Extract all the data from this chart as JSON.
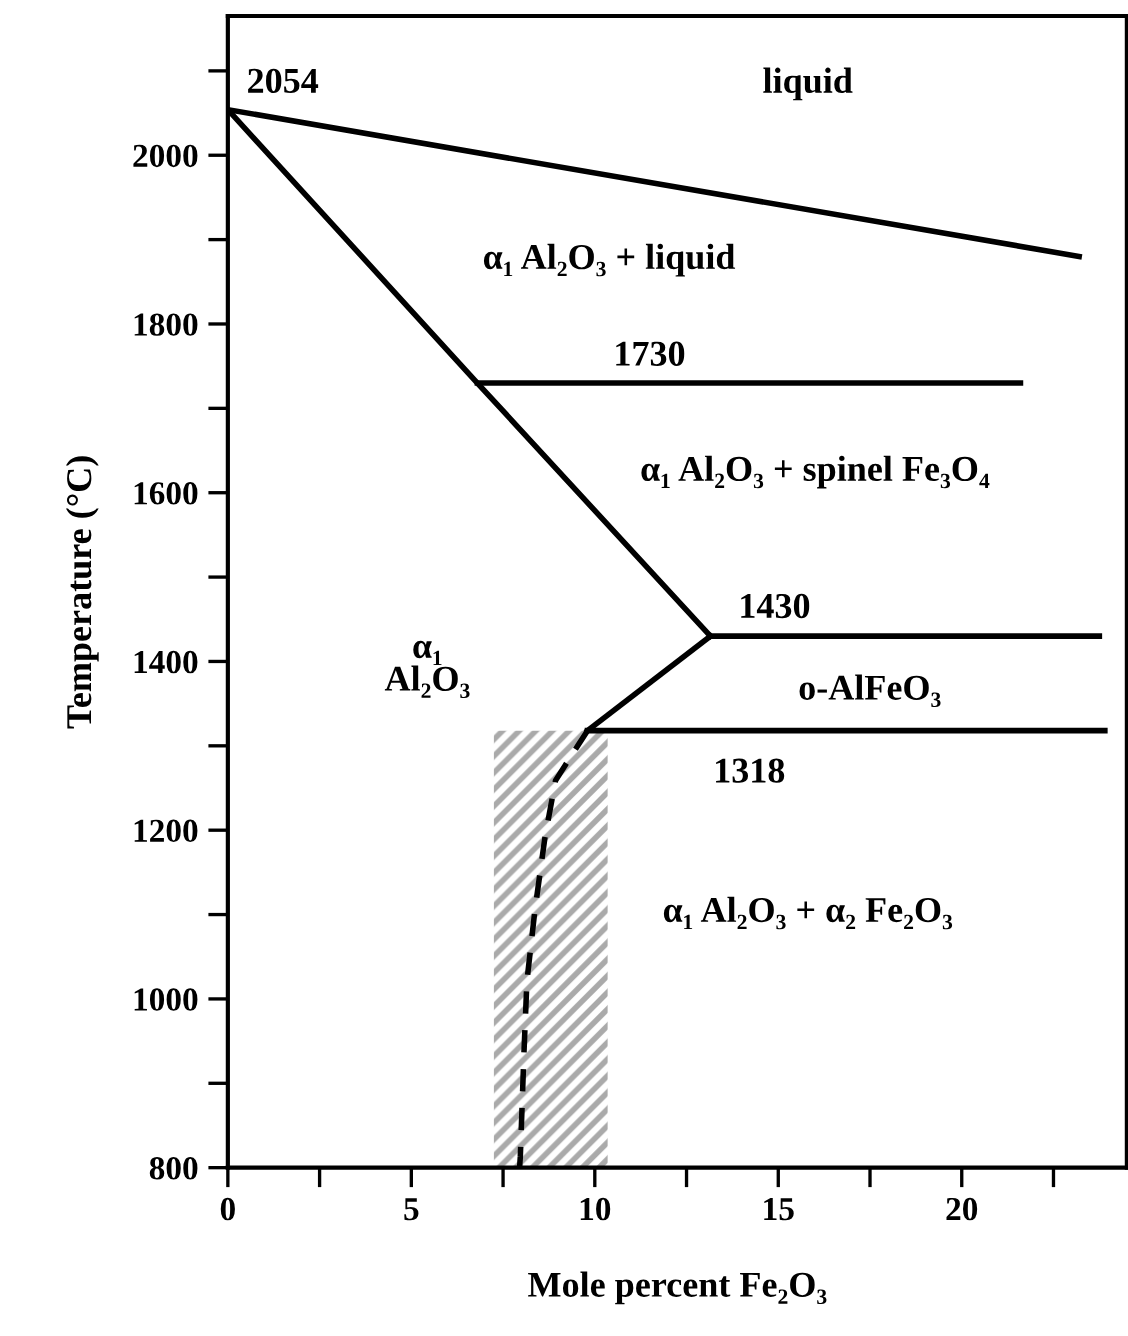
{
  "chart_data": {
    "type": "line",
    "xlabel": "Mole percent Fe₂O₃",
    "ylabel": "Temperature (°C)",
    "xlim": [
      0,
      24.5
    ],
    "ylim": [
      800,
      2165
    ],
    "xticks": [
      0,
      {
        "value": 2.5,
        "label": null
      },
      5,
      {
        "value": 7.5,
        "label": null
      },
      10,
      {
        "value": 12.5,
        "label": null
      },
      15,
      {
        "value": 17.5,
        "label": null
      },
      20,
      {
        "value": 22.5,
        "label": null
      }
    ],
    "yticks": [
      800,
      {
        "value": 900,
        "label": null
      },
      1000,
      {
        "value": 1100,
        "label": null
      },
      1200,
      {
        "value": 1300,
        "label": null
      },
      1400,
      {
        "value": 1500,
        "label": null
      },
      1600,
      {
        "value": 1700,
        "label": null
      },
      1800,
      {
        "value": 1900,
        "label": null
      },
      2000,
      {
        "value": 2100,
        "label": null
      }
    ],
    "grid": false,
    "legend": false,
    "marker": "none",
    "series": [
      {
        "type": "area",
        "color": "#aaaaaa",
        "x": [
          7.25,
          10.35
        ],
        "values": [
          1318,
          1318
        ]
      },
      {
        "color": "#000000",
        "line_style": "solid",
        "x": [
          0,
          23.2
        ],
        "values": [
          2054,
          1880
        ]
      },
      {
        "color": "#000000",
        "line_style": "solid",
        "x": [
          0,
          6.8,
          13.15
        ],
        "values": [
          2054,
          1730,
          1430
        ]
      },
      {
        "color": "#000000",
        "line_style": "solid",
        "x": [
          6.8,
          21.6
        ],
        "values": [
          1730,
          1730
        ]
      },
      {
        "color": "#000000",
        "line_style": "solid",
        "x": [
          13.15,
          23.75
        ],
        "values": [
          1430,
          1430
        ]
      },
      {
        "color": "#000000",
        "line_style": "solid",
        "x": [
          9.8,
          13.15
        ],
        "values": [
          1318,
          1430
        ]
      },
      {
        "color": "#000000",
        "line_style": "solid",
        "x": [
          9.8,
          23.9
        ],
        "values": [
          1318,
          1318
        ]
      },
      {
        "color": "#000000",
        "line_style": "dashed",
        "x": [
          9.8,
          8.93,
          8.64,
          8.37,
          8.15,
          8.07,
          7.97,
          7.95
        ],
        "values": [
          1318,
          1259,
          1191,
          1106,
          1021,
          937,
          813,
          800
        ]
      }
    ],
    "annotations": [
      "2054",
      "liquid",
      "α₁ Al₂O₃ + liquid",
      "1730",
      "α₁ Al₂O₃ + spinel Fe₃O₄",
      "1430",
      "α₁\nAl₂O₃",
      "o-AlFeO₃",
      "1318",
      "α₁ Al₂O₃ + α₂ Fe₂O₃"
    ]
  }
}
